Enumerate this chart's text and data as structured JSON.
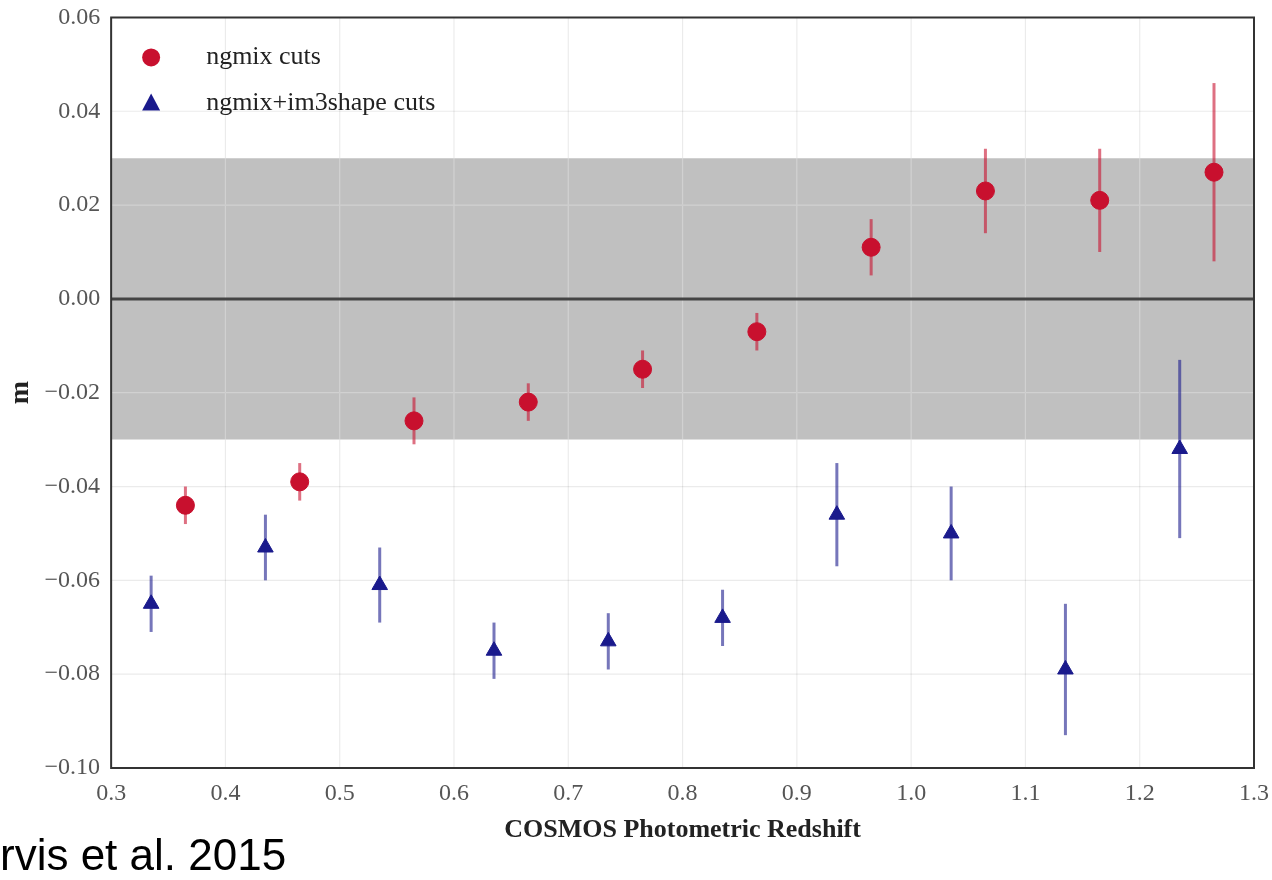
{
  "chart_data": {
    "type": "scatter",
    "xlabel": "COSMOS Photometric Redshift",
    "ylabel": "m",
    "series": [
      {
        "name": "ngmix cuts",
        "color": "#c8102e",
        "marker": "circle",
        "x": [
          0.365,
          0.465,
          0.565,
          0.665,
          0.765,
          0.865,
          0.965,
          1.065,
          1.165,
          1.265
        ],
        "values": [
          -0.044,
          -0.039,
          -0.026,
          -0.022,
          -0.015,
          -0.007,
          0.011,
          0.023,
          0.021,
          0.027
        ],
        "errors": [
          0.004,
          0.004,
          0.005,
          0.004,
          0.004,
          0.004,
          0.006,
          0.009,
          0.011,
          0.019
        ]
      },
      {
        "name": "ngmix+im3shape cuts",
        "color": "#1a1a8c",
        "marker": "triangle",
        "x": [
          0.335,
          0.435,
          0.535,
          0.635,
          0.735,
          0.835,
          0.935,
          1.035,
          1.135,
          1.235
        ],
        "values": [
          -0.065,
          -0.053,
          -0.061,
          -0.075,
          -0.073,
          -0.068,
          -0.046,
          -0.05,
          -0.079,
          -0.032
        ],
        "errors": [
          0.006,
          0.007,
          0.008,
          0.006,
          0.006,
          0.006,
          0.011,
          0.01,
          0.014,
          0.019
        ]
      }
    ],
    "xlim": [
      0.3,
      1.3
    ],
    "xticks": [
      0.3,
      0.4,
      0.5,
      0.6,
      0.7,
      0.8,
      0.9,
      {
        "value": 1.0,
        "label": "1.0"
      },
      1.1,
      1.2,
      1.3
    ],
    "ylim": [
      -0.1,
      0.06
    ],
    "yticks": [
      {
        "value": -0.1,
        "label": "−0.10"
      },
      {
        "value": -0.08,
        "label": "−0.08"
      },
      {
        "value": -0.06,
        "label": "−0.06"
      },
      {
        "value": -0.04,
        "label": "−0.04"
      },
      {
        "value": -0.02,
        "label": "−0.02"
      },
      {
        "value": 0,
        "label": "0.00"
      },
      {
        "value": 0.02,
        "label": "0.02"
      },
      {
        "value": 0.04,
        "label": "0.04"
      },
      {
        "value": 0.06,
        "label": "0.06"
      }
    ],
    "bands": [
      {
        "axis": "y",
        "from": -0.03,
        "to": 0.03,
        "color": "#c0c0c0"
      }
    ],
    "ref_lines": [
      {
        "axis": "y",
        "value": 0,
        "color": "#444444"
      }
    ],
    "grid": true,
    "legend": "top left",
    "annotations": [
      "rvis et al. 2015"
    ]
  }
}
